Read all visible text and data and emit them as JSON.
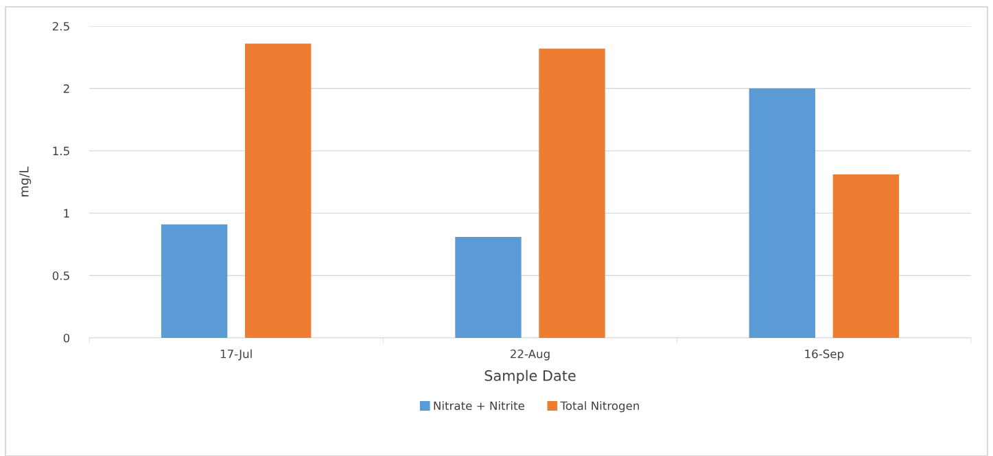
{
  "chart_data": {
    "type": "bar",
    "xlabel": "Sample Date",
    "ylabel": "mg/L",
    "categories": [
      "17-Jul",
      "22-Aug",
      "16-Sep"
    ],
    "series": [
      {
        "name": "Nitrate + Nitrite",
        "color": "#5b9bd5",
        "values": [
          0.91,
          0.81,
          2.0
        ]
      },
      {
        "name": "Total Nitrogen",
        "color": "#ed7d31",
        "values": [
          2.36,
          2.32,
          1.31
        ]
      }
    ],
    "ylim": [
      0,
      2.5
    ],
    "yticks": [
      0,
      {
        "value": 0.5,
        "label": "0.5"
      },
      1,
      {
        "value": 1.5,
        "label": "1.5"
      },
      2,
      {
        "value": 2.5,
        "label": "2.5"
      }
    ],
    "grid": "y",
    "legend": "bottom"
  }
}
